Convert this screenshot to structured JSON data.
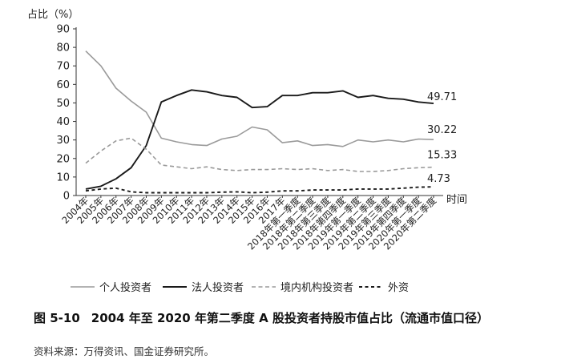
{
  "chart_data": {
    "type": "line",
    "ylabel": "占比（%）",
    "xlabel": "时间",
    "ylim": [
      0,
      90
    ],
    "yticks": [
      0,
      10,
      20,
      30,
      40,
      50,
      60,
      70,
      80,
      90
    ],
    "grid": false,
    "legend_position": "bottom",
    "categories": [
      "2004年",
      "2005年",
      "2006年",
      "2007年",
      "2008年",
      "2009年",
      "2010年",
      "2011年",
      "2012年",
      "2013年",
      "2014年",
      "2015年",
      "2016年",
      "2017年",
      "2018年第一季度",
      "2018年第二季度",
      "2018年第三季度",
      "2018年第四季度",
      "2019年第一季度",
      "2019年第二季度",
      "2019年第三季度",
      "2019年第四季度",
      "2020年第一季度",
      "2020年第二季度"
    ],
    "series": [
      {
        "name": "个人投资者",
        "color": "#9a9a9a",
        "dash": "solid",
        "values": [
          78,
          70,
          58,
          51,
          45,
          31,
          29,
          27.5,
          27,
          30.5,
          32,
          37,
          35.5,
          28.5,
          29.5,
          27,
          27.5,
          26.5,
          30,
          29,
          30,
          29,
          30.5,
          30.22
        ],
        "end_label": "30.22"
      },
      {
        "name": "法人投资者",
        "color": "#1a1a1a",
        "dash": "solid",
        "values": [
          3.5,
          5,
          9,
          15,
          27,
          50.5,
          54,
          57,
          56,
          54,
          53,
          47.5,
          48,
          54,
          54,
          55.5,
          55.5,
          56.5,
          53,
          54,
          52.5,
          52,
          50.5,
          49.71
        ],
        "end_label": "49.71"
      },
      {
        "name": "境内机构投资者",
        "color": "#9a9a9a",
        "dash": "dashed",
        "values": [
          17.5,
          24,
          29.5,
          31,
          25,
          16.5,
          15.5,
          14.5,
          15.5,
          14,
          13.5,
          14,
          14,
          14.5,
          14,
          14.5,
          13.5,
          14,
          13,
          13,
          13.5,
          14.5,
          15,
          15.33
        ],
        "end_label": "15.33"
      },
      {
        "name": "外资",
        "color": "#1a1a1a",
        "dash": "dashed",
        "values": [
          2.5,
          3.5,
          4,
          2,
          1.5,
          1.5,
          1.5,
          1.5,
          1.5,
          1.8,
          2,
          1.5,
          1.8,
          2.5,
          2.5,
          3,
          3,
          3,
          3.5,
          3.5,
          3.5,
          4,
          4.5,
          4.73
        ],
        "end_label": "4.73"
      }
    ]
  },
  "figure": {
    "number": "图 5-10",
    "title": "2004 年至 2020 年第二季度 A 股投资者持股市值占比（流通市值口径）"
  },
  "source_note": "资料来源：万得资讯、国金证券研究所。"
}
